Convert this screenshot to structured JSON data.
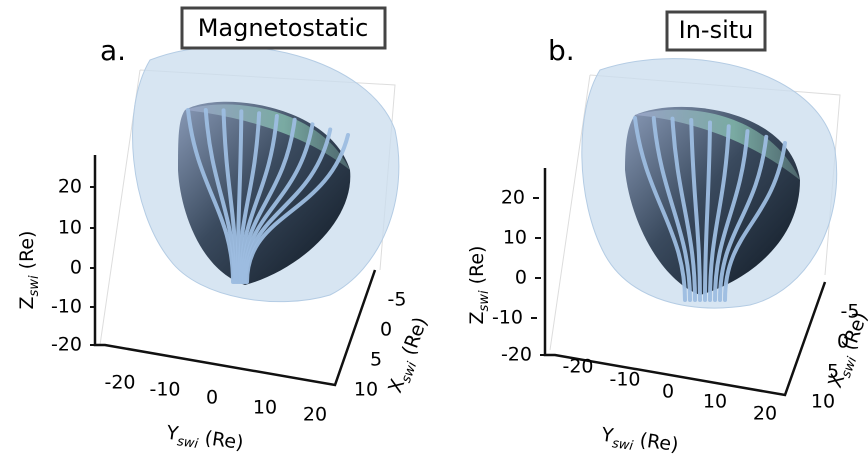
{
  "panels": [
    {
      "letter": "a.",
      "title": "Magnetostatic",
      "z_axis": {
        "symbol": "Z",
        "subscript": "swi",
        "unit": "(Re)",
        "ticks": [
          20,
          10,
          0,
          -10,
          -20
        ]
      },
      "y_axis": {
        "symbol": "Y",
        "subscript": "swi",
        "unit": "(Re)",
        "ticks": [
          -20,
          -10,
          0,
          10,
          20
        ]
      },
      "x_axis": {
        "symbol": "X",
        "subscript": "swi",
        "unit": "(Re)",
        "ticks": [
          -5,
          0,
          5,
          10
        ]
      }
    },
    {
      "letter": "b.",
      "title": "In-situ",
      "z_axis": {
        "symbol": "Z",
        "subscript": "swi",
        "unit": "(Re)",
        "ticks": [
          20,
          10,
          0,
          -10,
          -20
        ]
      },
      "y_axis": {
        "symbol": "Y",
        "subscript": "swi",
        "unit": "(Re)",
        "ticks": [
          -20,
          -10,
          0,
          10,
          20
        ]
      },
      "x_axis": {
        "symbol": "X",
        "subscript": "swi",
        "unit": "(Re)",
        "ticks": [
          -5,
          0,
          5,
          10
        ]
      }
    }
  ]
}
